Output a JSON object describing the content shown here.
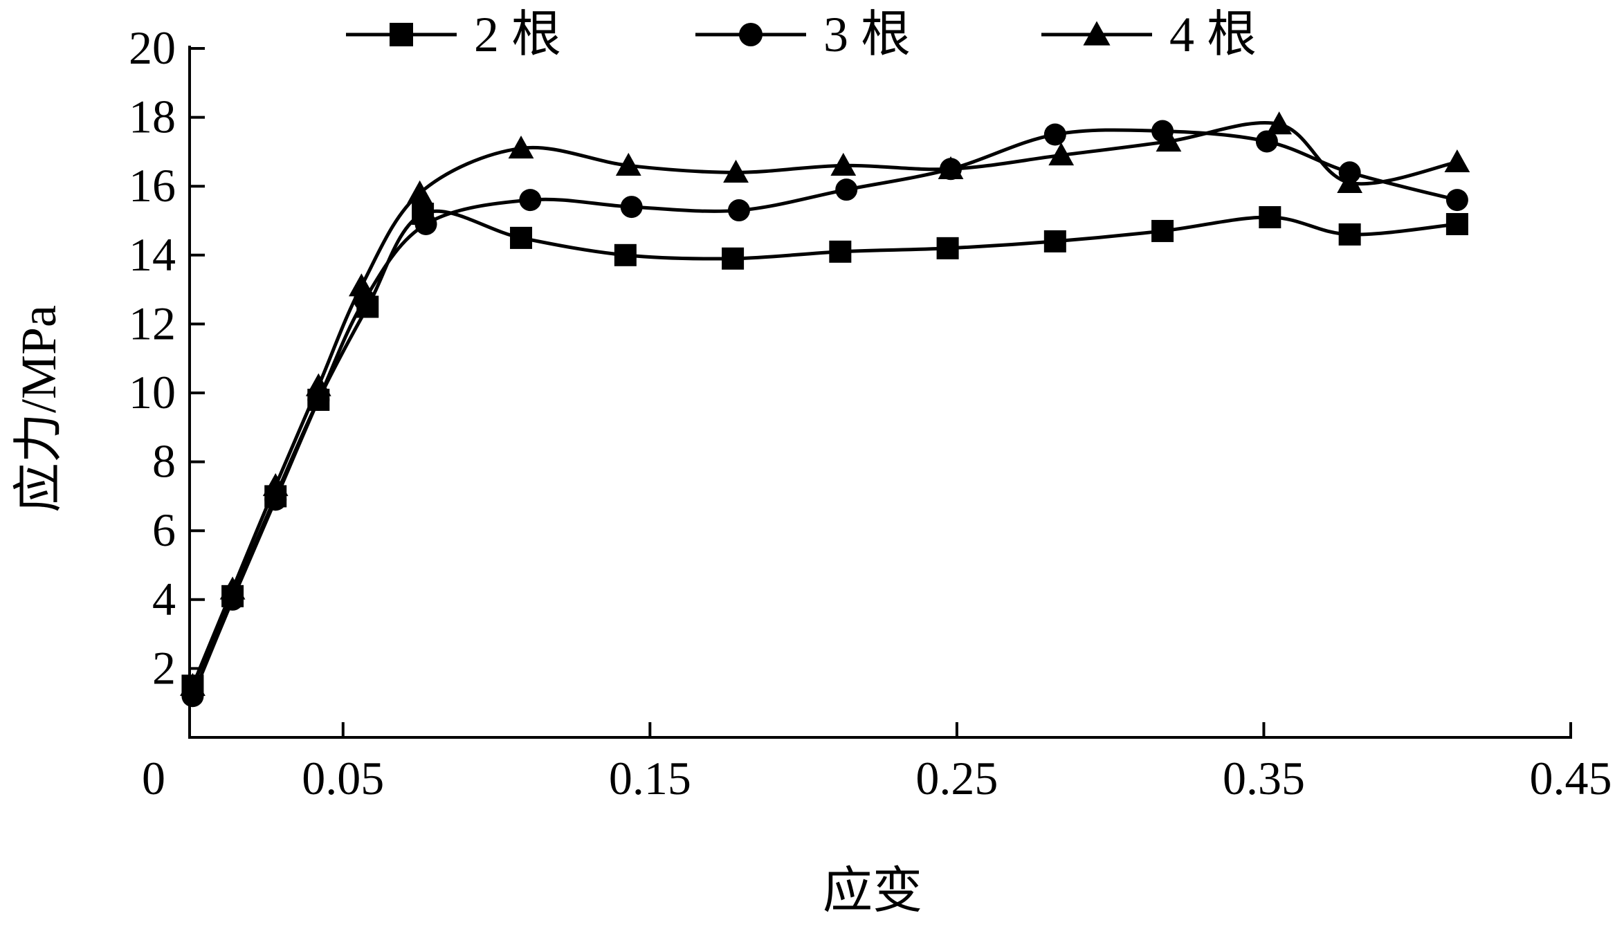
{
  "chart_data": {
    "type": "line",
    "xlabel": "应变",
    "ylabel": "应力/MPa",
    "xlim": [
      0,
      0.45
    ],
    "ylim": [
      0,
      20
    ],
    "x_ticks": [
      0.05,
      0.15,
      0.25,
      0.35,
      0.45
    ],
    "x_tick_labels": [
      "0.05",
      "0.15",
      "0.25",
      "0.35",
      "0.45"
    ],
    "x_origin_label": "0",
    "y_ticks": [
      2,
      4,
      6,
      8,
      10,
      12,
      14,
      16,
      18,
      20
    ],
    "y_tick_labels": [
      "2",
      "4",
      "6",
      "8",
      "10",
      "12",
      "14",
      "16",
      "18",
      "20"
    ],
    "grid": false,
    "legend_position": "top",
    "series": [
      {
        "name": "2 根",
        "marker": "square",
        "x": [
          0.001,
          0.014,
          0.028,
          0.042,
          0.058,
          0.076,
          0.108,
          0.142,
          0.177,
          0.212,
          0.247,
          0.282,
          0.317,
          0.352,
          0.378,
          0.413
        ],
        "y": [
          1.5,
          4.1,
          7.0,
          9.8,
          12.5,
          15.2,
          14.5,
          14.0,
          13.9,
          14.1,
          14.2,
          14.4,
          14.7,
          15.1,
          14.6,
          14.9
        ]
      },
      {
        "name": "3 根",
        "marker": "circle",
        "x": [
          0.001,
          0.014,
          0.028,
          0.042,
          0.057,
          0.077,
          0.111,
          0.144,
          0.179,
          0.214,
          0.248,
          0.282,
          0.317,
          0.351,
          0.378,
          0.413
        ],
        "y": [
          1.2,
          4.0,
          6.9,
          9.8,
          12.7,
          14.9,
          15.6,
          15.4,
          15.3,
          15.9,
          16.5,
          17.5,
          17.6,
          17.3,
          16.4,
          15.6
        ]
      },
      {
        "name": "4 根",
        "marker": "triangle",
        "x": [
          0.001,
          0.014,
          0.028,
          0.042,
          0.056,
          0.075,
          0.108,
          0.143,
          0.178,
          0.213,
          0.248,
          0.284,
          0.319,
          0.355,
          0.378,
          0.413
        ],
        "y": [
          1.5,
          4.3,
          7.3,
          10.2,
          13.1,
          15.8,
          17.1,
          16.6,
          16.4,
          16.6,
          16.5,
          16.9,
          17.3,
          17.8,
          16.1,
          16.7
        ]
      }
    ]
  }
}
